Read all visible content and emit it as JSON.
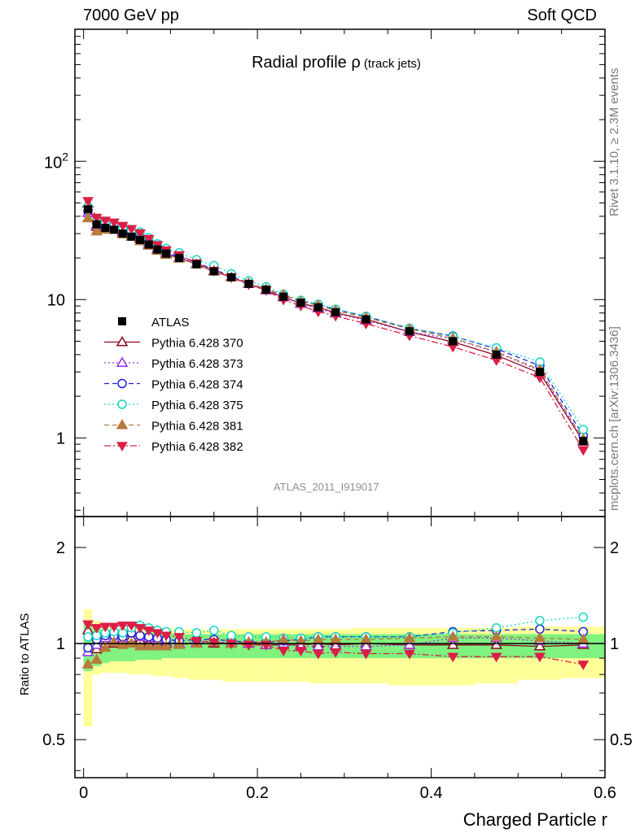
{
  "header": {
    "energy_label": "7000 GeV pp",
    "category_label": "Soft QCD"
  },
  "side_text": {
    "generator_info": "Rivet 3.1.10, ≥ 2.3M events",
    "source_info": "mcplots.cern.ch [arXiv:1306.3436]"
  },
  "title": {
    "main": "Radial profile ρ",
    "sub": " (track jets)"
  },
  "analysis_id": "ATLAS_2011_I919017",
  "x_axis_label": "Charged Particle r",
  "ratio_axis_label": "Ratio to ATLAS",
  "colors": {
    "ratio_band_inner": "#7ff27f",
    "ratio_band_outer": "#ffff99",
    "reference_line": "#000000"
  },
  "chart_data": {
    "type": "line",
    "xlim": [
      -0.01,
      0.6
    ],
    "main_panel": {
      "yscale": "log",
      "ylim": [
        0.27,
        900
      ],
      "ytick_labels": [
        "1",
        "10",
        "10^2"
      ],
      "ytick_values": [
        1,
        10,
        100
      ]
    },
    "ratio_panel": {
      "yscale": "log",
      "ylim": [
        0.38,
        2.5
      ],
      "ytick_labels": [
        "0.5",
        "1",
        "2"
      ],
      "ytick_values": [
        0.5,
        1,
        2
      ],
      "xtick_labels": [
        "0",
        "0.2",
        "0.4",
        "0.6"
      ],
      "xtick_values": [
        0,
        0.2,
        0.4,
        0.6
      ]
    },
    "x": [
      0.005,
      0.015,
      0.025,
      0.035,
      0.045,
      0.055,
      0.065,
      0.075,
      0.085,
      0.095,
      0.11,
      0.13,
      0.15,
      0.17,
      0.19,
      0.21,
      0.23,
      0.25,
      0.27,
      0.29,
      0.325,
      0.375,
      0.425,
      0.475,
      0.525,
      0.575
    ],
    "reference": {
      "name": "ATLAS",
      "values": [
        45,
        35,
        33,
        32,
        30,
        28.5,
        27,
        25,
        23,
        21.5,
        20,
        18,
        16,
        14.5,
        13,
        11.8,
        10.5,
        9.5,
        8.8,
        8.1,
        7.2,
        5.9,
        5.0,
        4.0,
        3.0,
        0.95
      ],
      "band_inner": [
        [
          0.82,
          1.18
        ],
        [
          0.85,
          1.12
        ],
        [
          0.87,
          1.1
        ],
        [
          0.88,
          1.09
        ],
        [
          0.88,
          1.09
        ],
        [
          0.88,
          1.09
        ],
        [
          0.89,
          1.08
        ],
        [
          0.89,
          1.08
        ],
        [
          0.89,
          1.08
        ],
        [
          0.9,
          1.08
        ],
        [
          0.9,
          1.07
        ],
        [
          0.9,
          1.07
        ],
        [
          0.9,
          1.07
        ],
        [
          0.9,
          1.07
        ],
        [
          0.9,
          1.07
        ],
        [
          0.9,
          1.07
        ],
        [
          0.9,
          1.07
        ],
        [
          0.9,
          1.07
        ],
        [
          0.9,
          1.07
        ],
        [
          0.9,
          1.07
        ],
        [
          0.9,
          1.07
        ],
        [
          0.9,
          1.07
        ],
        [
          0.9,
          1.07
        ],
        [
          0.9,
          1.07
        ],
        [
          0.9,
          1.07
        ],
        [
          0.9,
          1.07
        ]
      ],
      "band_outer": [
        [
          0.55,
          1.28
        ],
        [
          0.8,
          1.18
        ],
        [
          0.81,
          1.14
        ],
        [
          0.81,
          1.12
        ],
        [
          0.81,
          1.12
        ],
        [
          0.8,
          1.12
        ],
        [
          0.8,
          1.12
        ],
        [
          0.8,
          1.12
        ],
        [
          0.79,
          1.12
        ],
        [
          0.79,
          1.12
        ],
        [
          0.78,
          1.11
        ],
        [
          0.77,
          1.11
        ],
        [
          0.77,
          1.11
        ],
        [
          0.76,
          1.11
        ],
        [
          0.76,
          1.11
        ],
        [
          0.76,
          1.11
        ],
        [
          0.76,
          1.11
        ],
        [
          0.76,
          1.11
        ],
        [
          0.75,
          1.11
        ],
        [
          0.75,
          1.11
        ],
        [
          0.75,
          1.12
        ],
        [
          0.74,
          1.12
        ],
        [
          0.74,
          1.12
        ],
        [
          0.75,
          1.12
        ],
        [
          0.77,
          1.13
        ],
        [
          0.78,
          1.13
        ]
      ]
    },
    "series": [
      {
        "name": "Pythia 6.428 370",
        "color": "#8b0a1e",
        "dash": "solid",
        "marker": "triangle-up-open",
        "ratio": [
          1.1,
          0.96,
          1.0,
          1.0,
          1.02,
          1.04,
          1.02,
          1.0,
          1.0,
          1.0,
          1.0,
          1.0,
          1.0,
          1.0,
          1.0,
          0.99,
          0.99,
          0.99,
          1.0,
          0.99,
          1.0,
          0.99,
          0.99,
          0.99,
          0.98,
          0.99
        ]
      },
      {
        "name": "Pythia 6.428 373",
        "color": "#9a30e6",
        "dash": "dotted",
        "marker": "triangle-up-open",
        "ratio": [
          0.94,
          0.99,
          1.04,
          1.04,
          1.04,
          1.08,
          1.05,
          1.04,
          1.02,
          1.02,
          1.0,
          1.01,
          1.01,
          1.01,
          1.0,
          0.99,
          1.0,
          0.98,
          0.98,
          0.98,
          0.98,
          0.99,
          1.04,
          1.04,
          1.02,
          1.0
        ]
      },
      {
        "name": "Pythia 6.428 374",
        "color": "#2222dd",
        "dash": "dashed",
        "marker": "circle-open",
        "ratio": [
          0.97,
          1.03,
          1.06,
          1.06,
          1.05,
          1.08,
          1.06,
          1.05,
          1.04,
          1.03,
          1.02,
          1.03,
          1.03,
          1.02,
          1.01,
          1.01,
          1.02,
          1.03,
          1.05,
          1.05,
          1.05,
          1.05,
          1.09,
          1.1,
          1.11,
          1.09
        ]
      },
      {
        "name": "Pythia 6.428 375",
        "color": "#16d5c5",
        "dash": "dotted",
        "marker": "circle-open",
        "ratio": [
          1.05,
          1.06,
          1.08,
          1.09,
          1.08,
          1.12,
          1.14,
          1.12,
          1.1,
          1.09,
          1.09,
          1.08,
          1.1,
          1.06,
          1.05,
          1.05,
          1.04,
          1.04,
          1.05,
          1.05,
          1.05,
          1.05,
          1.08,
          1.12,
          1.18,
          1.21
        ]
      },
      {
        "name": "Pythia 6.428 381",
        "color": "#b87a3c",
        "dash": "dashed",
        "marker": "triangle-up-filled",
        "ratio": [
          0.86,
          0.89,
          0.97,
          1.01,
          0.99,
          1.0,
          0.98,
          0.98,
          0.98,
          0.98,
          0.99,
          1.0,
          1.01,
          1.0,
          1.01,
          1.01,
          1.03,
          1.02,
          1.03,
          1.03,
          1.03,
          1.04,
          1.05,
          1.05,
          1.04,
          1.03
        ]
      },
      {
        "name": "Pythia 6.428 382",
        "color": "#dc1e46",
        "dash": "dashdot",
        "marker": "triangle-down-filled",
        "ratio": [
          1.15,
          1.12,
          1.13,
          1.13,
          1.14,
          1.14,
          1.12,
          1.1,
          1.08,
          1.06,
          1.05,
          1.02,
          1.01,
          1.0,
          0.99,
          0.99,
          0.95,
          0.95,
          0.93,
          0.94,
          0.93,
          0.93,
          0.91,
          0.91,
          0.91,
          0.86
        ]
      }
    ]
  }
}
